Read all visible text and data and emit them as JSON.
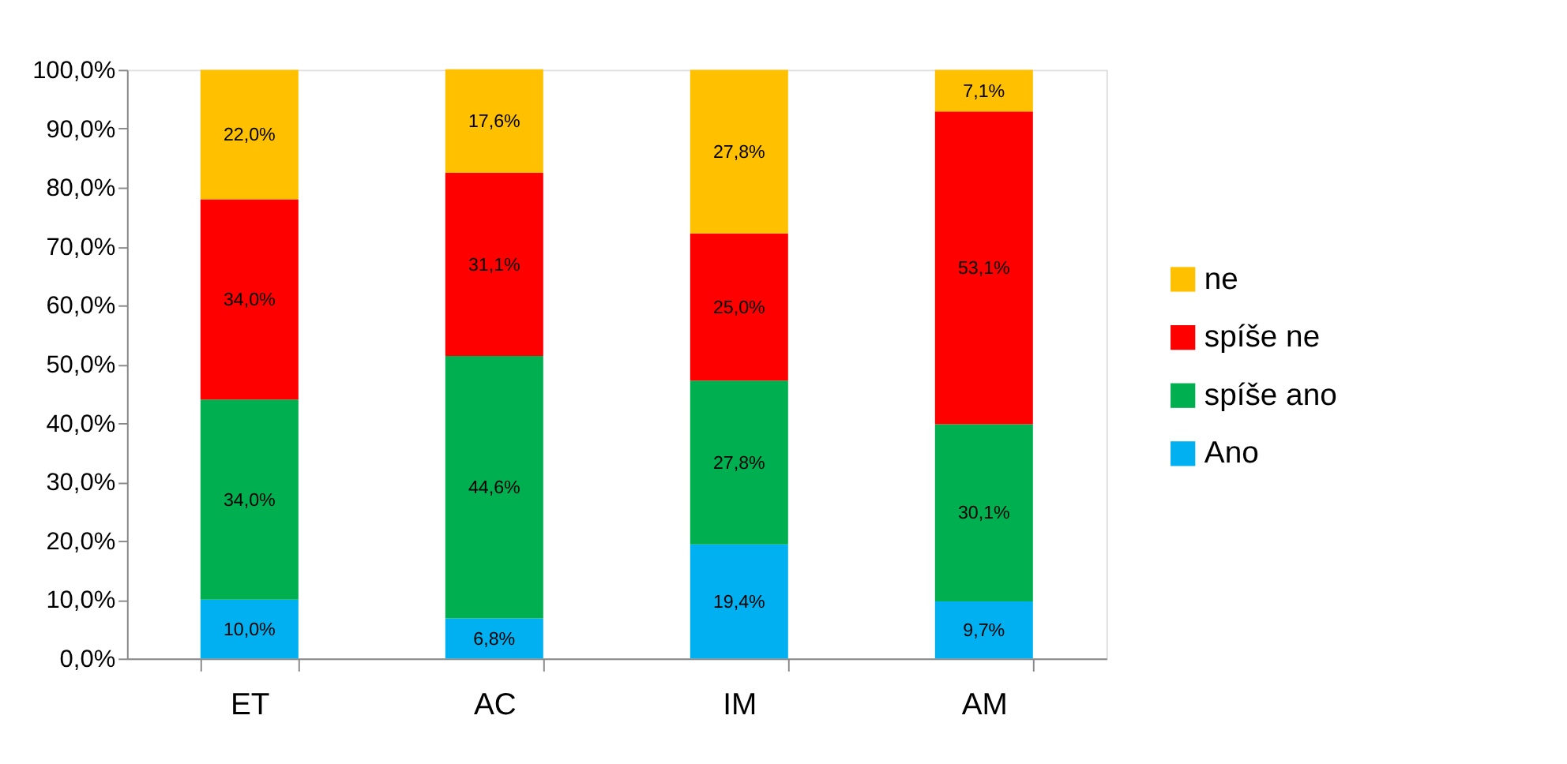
{
  "chart_data": {
    "type": "bar",
    "stacked": true,
    "categories": [
      "ET",
      "AC",
      "IM",
      "AM"
    ],
    "series": [
      {
        "name": "Ano",
        "color": "#00b0f0",
        "values": [
          10.0,
          6.8,
          19.4,
          9.7
        ],
        "value_labels": [
          "10,0%",
          "6,8%",
          "19,4%",
          "9,7%"
        ]
      },
      {
        "name": "spíše ano",
        "color": "#00b050",
        "values": [
          34.0,
          44.6,
          27.8,
          30.1
        ],
        "value_labels": [
          "34,0%",
          "44,6%",
          "27,8%",
          "30,1%"
        ]
      },
      {
        "name": "spíše ne",
        "color": "#ff0000",
        "values": [
          34.0,
          31.1,
          25.0,
          53.1
        ],
        "value_labels": [
          "34,0%",
          "31,1%",
          "25,0%",
          "53,1%"
        ]
      },
      {
        "name": "ne",
        "color": "#ffc000",
        "values": [
          22.0,
          17.6,
          27.8,
          7.1
        ],
        "value_labels": [
          "22,0%",
          "17,6%",
          "27,8%",
          "7,1%"
        ]
      }
    ],
    "ylim": [
      0,
      100
    ],
    "yticks": [
      {
        "value": 0,
        "label": "0,0%"
      },
      {
        "value": 10,
        "label": "10,0%"
      },
      {
        "value": 20,
        "label": "20,0%"
      },
      {
        "value": 30,
        "label": "30,0%"
      },
      {
        "value": 40,
        "label": "40,0%"
      },
      {
        "value": 50,
        "label": "50,0%"
      },
      {
        "value": 60,
        "label": "60,0%"
      },
      {
        "value": 70,
        "label": "70,0%"
      },
      {
        "value": 80,
        "label": "80,0%"
      },
      {
        "value": 90,
        "label": "90,0%"
      },
      {
        "value": 100,
        "label": "100,0%"
      }
    ],
    "grid": false,
    "legend": "right"
  }
}
